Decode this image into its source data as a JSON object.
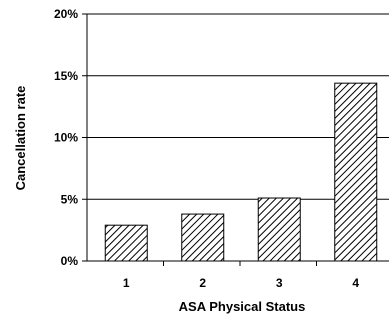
{
  "chart_data": {
    "type": "bar",
    "title": "",
    "xlabel": "ASA Physical Status",
    "ylabel": "Cancellation rate",
    "categories": [
      "1",
      "2",
      "3",
      "4"
    ],
    "values": [
      2.9,
      3.8,
      5.1,
      14.4
    ],
    "ylim": [
      0,
      20
    ],
    "yticks": [
      "0%",
      "5%",
      "10%",
      "15%",
      "20%"
    ],
    "ytick_values": [
      0,
      5,
      10,
      15,
      20
    ],
    "grid": "horizontal",
    "bar_pattern": "diagonal-hatch",
    "bar_color": "#000000",
    "background": "#ffffff"
  }
}
